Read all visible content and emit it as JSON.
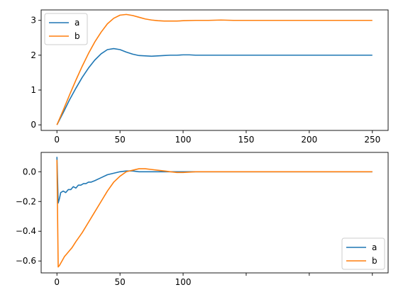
{
  "chart_data": [
    {
      "type": "line",
      "title": "",
      "xlabel": "",
      "ylabel": "",
      "xlim": [
        -12.5,
        262.5
      ],
      "ylim": [
        -0.16,
        3.3
      ],
      "xticks": [
        0,
        50,
        100,
        150,
        200,
        250
      ],
      "xtick_labels": [
        "0",
        "50",
        "100",
        "150",
        "200",
        "250"
      ],
      "yticks": [
        0,
        1,
        2,
        3
      ],
      "ytick_labels": [
        "0",
        "1",
        "2",
        "3"
      ],
      "grid": false,
      "legend": "upper left",
      "colors": {
        "a": "#1f77b4",
        "b": "#ff7f0e"
      },
      "series": [
        {
          "name": "a",
          "x": [
            0,
            5,
            10,
            15,
            20,
            25,
            30,
            35,
            40,
            45,
            50,
            55,
            60,
            65,
            70,
            75,
            80,
            85,
            90,
            95,
            100,
            105,
            110,
            120,
            130,
            140,
            160,
            180,
            200,
            220,
            250
          ],
          "y": [
            0,
            0.35,
            0.72,
            1.05,
            1.36,
            1.63,
            1.86,
            2.04,
            2.16,
            2.19,
            2.16,
            2.09,
            2.03,
            1.99,
            1.98,
            1.97,
            1.98,
            1.99,
            2.0,
            2.0,
            2.01,
            2.01,
            2.0,
            2.0,
            2.0,
            2.0,
            2.0,
            2.0,
            2.0,
            2.0,
            2.0
          ]
        },
        {
          "name": "b",
          "x": [
            0,
            5,
            10,
            15,
            20,
            25,
            30,
            35,
            40,
            45,
            50,
            55,
            60,
            65,
            70,
            75,
            80,
            85,
            90,
            95,
            100,
            110,
            120,
            130,
            140,
            160,
            180,
            200,
            220,
            250
          ],
          "y": [
            0,
            0.42,
            0.86,
            1.28,
            1.68,
            2.05,
            2.38,
            2.66,
            2.9,
            3.06,
            3.15,
            3.17,
            3.14,
            3.09,
            3.04,
            3.01,
            2.99,
            2.98,
            2.98,
            2.98,
            2.99,
            3.0,
            3.0,
            3.01,
            3.0,
            3.0,
            3.0,
            3.0,
            3.0,
            3.0
          ]
        }
      ]
    },
    {
      "type": "line",
      "title": "",
      "xlabel": "",
      "ylabel": "",
      "xlim": [
        -12.5,
        262.5
      ],
      "ylim": [
        -0.68,
        0.13
      ],
      "xticks": [
        0,
        50,
        100,
        150,
        200,
        250
      ],
      "xtick_labels": [
        "0",
        "50",
        "100",
        "",
        "",
        ""
      ],
      "yticks": [
        0.0,
        -0.2,
        -0.4,
        -0.6
      ],
      "ytick_labels": [
        "0.0",
        "−0.2",
        "−0.4",
        "−0.6"
      ],
      "grid": false,
      "legend": "lower right",
      "colors": {
        "a": "#1f77b4",
        "b": "#ff7f0e"
      },
      "series": [
        {
          "name": "a",
          "x": [
            0,
            1,
            2,
            3,
            5,
            7,
            9,
            11,
            13,
            15,
            17,
            19,
            21,
            23,
            25,
            27,
            30,
            35,
            40,
            45,
            50,
            55,
            60,
            65,
            70,
            80,
            90,
            100,
            120,
            150,
            200,
            250
          ],
          "y": [
            0.1,
            -0.21,
            -0.18,
            -0.14,
            -0.13,
            -0.14,
            -0.12,
            -0.12,
            -0.1,
            -0.11,
            -0.09,
            -0.09,
            -0.08,
            -0.08,
            -0.07,
            -0.07,
            -0.06,
            -0.04,
            -0.02,
            -0.01,
            0.0,
            0.005,
            0.005,
            0.0,
            0.0,
            0.0,
            0.0,
            0.0,
            0.0,
            0.0,
            0.0,
            0.0
          ]
        },
        {
          "name": "b",
          "x": [
            0,
            1,
            2,
            4,
            6,
            8,
            10,
            12,
            15,
            20,
            25,
            30,
            35,
            40,
            45,
            50,
            55,
            60,
            65,
            70,
            75,
            80,
            85,
            90,
            95,
            100,
            110,
            120,
            150,
            200,
            250
          ],
          "y": [
            0.08,
            -0.64,
            -0.63,
            -0.6,
            -0.57,
            -0.55,
            -0.53,
            -0.51,
            -0.47,
            -0.41,
            -0.34,
            -0.27,
            -0.2,
            -0.13,
            -0.07,
            -0.03,
            0.0,
            0.01,
            0.02,
            0.02,
            0.015,
            0.01,
            0.005,
            0.0,
            -0.005,
            -0.005,
            0.0,
            0.0,
            0.0,
            0.0,
            0.0
          ]
        }
      ]
    }
  ]
}
